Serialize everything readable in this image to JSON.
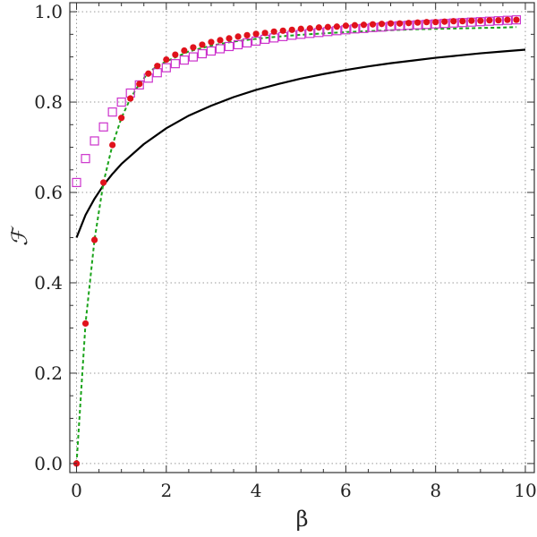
{
  "chart_data": {
    "type": "line",
    "xlabel": "β",
    "ylabel": "ℱ",
    "xlim": [
      -0.15,
      10.2
    ],
    "ylim": [
      -0.02,
      1.02
    ],
    "x_ticks": [
      0,
      2,
      4,
      6,
      8,
      10
    ],
    "x_tick_labels": [
      "0",
      "2",
      "4",
      "6",
      "8",
      "10"
    ],
    "y_ticks": [
      0.0,
      0.2,
      0.4,
      0.6,
      0.8,
      1.0
    ],
    "y_tick_labels": [
      "0.0",
      "0.2",
      "0.4",
      "0.6",
      "0.8",
      "1.0"
    ],
    "grid": "dotted",
    "colors": {
      "black_curve": "#000000",
      "green_dashed": "#1aa31a",
      "red_dots": "#e0121c",
      "magenta_squares": "#cc33cc",
      "grid": "#9a9a9a",
      "frame": "#333333"
    },
    "series": [
      {
        "style": "solid-line",
        "color": "#000000",
        "x": [
          0,
          0.2,
          0.4,
          0.6,
          0.8,
          1,
          1.5,
          2,
          2.5,
          3,
          3.5,
          4,
          4.5,
          5,
          5.5,
          6,
          6.5,
          7,
          7.5,
          8,
          8.5,
          9,
          9.5,
          10
        ],
        "y": [
          0.5,
          0.55,
          0.586,
          0.616,
          0.641,
          0.663,
          0.707,
          0.742,
          0.77,
          0.792,
          0.811,
          0.827,
          0.84,
          0.852,
          0.862,
          0.871,
          0.879,
          0.886,
          0.892,
          0.898,
          0.903,
          0.908,
          0.912,
          0.916
        ]
      },
      {
        "style": "dashed-line",
        "color": "#1aa31a",
        "x": [
          0,
          0.2,
          0.4,
          0.6,
          0.8,
          1,
          1.2,
          1.4,
          1.6,
          1.8,
          2,
          2.5,
          3,
          3.5,
          4,
          4.5,
          5,
          5.5,
          6,
          6.5,
          7,
          7.5,
          8,
          8.5,
          9,
          9.5,
          9.8
        ],
        "y": [
          0.0,
          0.31,
          0.495,
          0.622,
          0.705,
          0.765,
          0.808,
          0.84,
          0.865,
          0.88,
          0.89,
          0.912,
          0.925,
          0.934,
          0.94,
          0.945,
          0.949,
          0.952,
          0.955,
          0.957,
          0.959,
          0.961,
          0.962,
          0.963,
          0.964,
          0.965,
          0.966
        ]
      },
      {
        "style": "filled-circle",
        "color": "#e0121c",
        "x": [
          0,
          0.2,
          0.4,
          0.6,
          0.8,
          1.0,
          1.2,
          1.4,
          1.6,
          1.8,
          2.0,
          2.2,
          2.4,
          2.6,
          2.8,
          3.0,
          3.2,
          3.4,
          3.6,
          3.8,
          4.0,
          4.2,
          4.4,
          4.6,
          4.8,
          5.0,
          5.2,
          5.4,
          5.6,
          5.8,
          6.0,
          6.2,
          6.4,
          6.6,
          6.8,
          7.0,
          7.2,
          7.4,
          7.6,
          7.8,
          8.0,
          8.2,
          8.4,
          8.6,
          8.8,
          9.0,
          9.2,
          9.4,
          9.6,
          9.8
        ],
        "y": [
          0.0,
          0.31,
          0.495,
          0.622,
          0.705,
          0.765,
          0.808,
          0.84,
          0.863,
          0.88,
          0.894,
          0.905,
          0.914,
          0.921,
          0.927,
          0.933,
          0.937,
          0.941,
          0.945,
          0.948,
          0.951,
          0.953,
          0.956,
          0.958,
          0.96,
          0.962,
          0.963,
          0.965,
          0.966,
          0.967,
          0.969,
          0.97,
          0.971,
          0.972,
          0.973,
          0.974,
          0.974,
          0.975,
          0.976,
          0.977,
          0.977,
          0.978,
          0.979,
          0.979,
          0.98,
          0.98,
          0.981,
          0.981,
          0.982,
          0.982
        ]
      },
      {
        "style": "open-square",
        "color": "#cc33cc",
        "x": [
          0,
          0.2,
          0.4,
          0.6,
          0.8,
          1.0,
          1.2,
          1.4,
          1.6,
          1.8,
          2.0,
          2.2,
          2.4,
          2.6,
          2.8,
          3.0,
          3.2,
          3.4,
          3.6,
          3.8,
          4.0,
          4.2,
          4.4,
          4.6,
          4.8,
          5.0,
          5.2,
          5.4,
          5.6,
          5.8,
          6.0,
          6.2,
          6.4,
          6.6,
          6.8,
          7.0,
          7.2,
          7.4,
          7.6,
          7.8,
          8.0,
          8.2,
          8.4,
          8.6,
          8.8,
          9.0,
          9.2,
          9.4,
          9.6,
          9.8
        ],
        "y": [
          0.622,
          0.675,
          0.714,
          0.745,
          0.778,
          0.8,
          0.82,
          0.838,
          0.853,
          0.865,
          0.876,
          0.885,
          0.893,
          0.9,
          0.907,
          0.913,
          0.918,
          0.923,
          0.927,
          0.931,
          0.935,
          0.939,
          0.942,
          0.945,
          0.948,
          0.95,
          0.952,
          0.954,
          0.956,
          0.958,
          0.96,
          0.962,
          0.963,
          0.965,
          0.966,
          0.968,
          0.969,
          0.97,
          0.971,
          0.972,
          0.973,
          0.974,
          0.975,
          0.976,
          0.977,
          0.978,
          0.979,
          0.98,
          0.981,
          0.982
        ]
      }
    ]
  }
}
